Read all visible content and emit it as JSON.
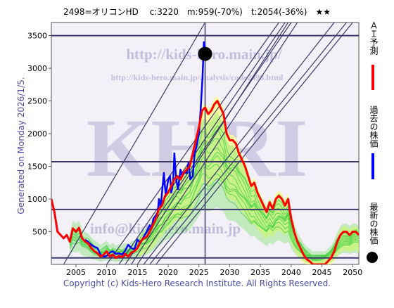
{
  "title": "2498=オリコンHD　 c:3220　m:959(-70%)　t:2054(-36%)　★★",
  "generated": "Generated on Monday 2026/1/5.",
  "copyright": "Copyright (c) Kids-Hero Research Institute. All Rights Reserved.",
  "watermarks": {
    "url_main": "http://kids-hero.main.jp/",
    "url_sub": "http://kids-hero.main.jp/analysis/code2498.html",
    "logo": "KHRI",
    "email": "info@kids-hero.main.jp"
  },
  "legend": {
    "ai_forecast": "ＡＩ予測",
    "past_price": "過去の株価",
    "latest_price": "最新の株価"
  },
  "colors": {
    "forecast": "#ff0000",
    "past": "#0000ff",
    "latest": "#000000",
    "band_green": "#33cc33",
    "band_yellow": "#ffff99",
    "grid": "#3a3a6a"
  },
  "chart_data": {
    "type": "line",
    "title": "2498=オリコンHD",
    "xlim": [
      2001,
      2051
    ],
    "ylim": [
      0,
      3700
    ],
    "x_ticks": [
      2005,
      2010,
      2015,
      2020,
      2025,
      2030,
      2035,
      2040,
      2045,
      2050
    ],
    "y_ticks": [
      500,
      1000,
      1500,
      2000,
      2500,
      3000,
      3500
    ],
    "hlines": [
      3500,
      1570,
      840,
      100
    ],
    "vline": 2026,
    "current": {
      "label": "c",
      "value": 3220,
      "x": 2026
    },
    "annotations": {
      "m": "959(-70%)",
      "t": "2054(-36%)"
    },
    "series": [
      {
        "name": "過去の株価",
        "color": "#0000ff",
        "x": [
          2006.5,
          2007,
          2007.5,
          2008,
          2008.5,
          2009,
          2009.5,
          2010,
          2010.5,
          2011,
          2011.5,
          2012,
          2012.5,
          2013,
          2013.5,
          2014,
          2014.5,
          2015,
          2015.5,
          2016,
          2016.5,
          2017,
          2017.3,
          2017.6,
          2018,
          2018.3,
          2018.5,
          2018.8,
          2019,
          2019.3,
          2019.6,
          2020,
          2020.3,
          2020.5,
          2020.8,
          2021,
          2021.3,
          2021.6,
          2022,
          2022.3,
          2022.6,
          2023,
          2023.3,
          2023.6,
          2024,
          2024.3,
          2024.6,
          2025,
          2025.3,
          2025.6,
          2025.8,
          2026
        ],
        "y": [
          380,
          340,
          300,
          270,
          250,
          150,
          120,
          130,
          180,
          200,
          160,
          170,
          150,
          210,
          300,
          250,
          230,
          380,
          330,
          420,
          500,
          600,
          560,
          700,
          750,
          800,
          1000,
          900,
          1100,
          1400,
          1050,
          1300,
          1350,
          1100,
          1250,
          1700,
          1300,
          1150,
          1450,
          1350,
          1400,
          1400,
          1550,
          1300,
          1350,
          1700,
          1800,
          2000,
          2400,
          2900,
          3400,
          3300
        ]
      },
      {
        "name": "ＡＩ予測",
        "color": "#ff0000",
        "x": [
          2001,
          2001.5,
          2002,
          2002.5,
          2003,
          2003.5,
          2004,
          2004.5,
          2005,
          2005.5,
          2006,
          2006.5,
          2007,
          2007.5,
          2008,
          2008.5,
          2009,
          2009.5,
          2010,
          2010.5,
          2011,
          2011.5,
          2012,
          2012.5,
          2013,
          2013.5,
          2014,
          2014.5,
          2015,
          2015.5,
          2016,
          2016.5,
          2017,
          2017.5,
          2018,
          2018.5,
          2019,
          2019.5,
          2020,
          2020.5,
          2021,
          2021.5,
          2022,
          2022.5,
          2023,
          2023.5,
          2024,
          2024.5,
          2025,
          2025.5,
          2026,
          2026.5,
          2027,
          2027.5,
          2028,
          2028.5,
          2029,
          2029.5,
          2030,
          2030.5,
          2031,
          2031.5,
          2032,
          2032.5,
          2033,
          2033.5,
          2034,
          2034.5,
          2035,
          2035.5,
          2036,
          2036.5,
          2037,
          2037.5,
          2038,
          2038.5,
          2039,
          2039.5,
          2040,
          2040.5,
          2041,
          2041.5,
          2042,
          2042.5,
          2043,
          2043.5,
          2044,
          2044.5,
          2045,
          2045.5,
          2046,
          2046.5,
          2047,
          2047.5,
          2048,
          2048.5,
          2049,
          2049.5,
          2050,
          2050.5,
          2051
        ],
        "y": [
          1000,
          800,
          500,
          450,
          400,
          450,
          350,
          550,
          500,
          560,
          400,
          350,
          320,
          250,
          200,
          170,
          120,
          150,
          200,
          120,
          150,
          100,
          130,
          110,
          160,
          120,
          180,
          200,
          250,
          350,
          400,
          420,
          500,
          600,
          700,
          850,
          900,
          1050,
          1100,
          1200,
          1300,
          1350,
          1300,
          1400,
          1450,
          1500,
          1700,
          1900,
          2100,
          2350,
          2400,
          2300,
          2350,
          2450,
          2500,
          2400,
          2300,
          2000,
          1900,
          1900,
          1850,
          1700,
          1600,
          1500,
          1350,
          1200,
          1250,
          1100,
          1000,
          900,
          800,
          950,
          850,
          1000,
          1050,
          1000,
          900,
          1000,
          700,
          500,
          350,
          250,
          150,
          80,
          50,
          0,
          0,
          0,
          0,
          0,
          50,
          100,
          200,
          350,
          450,
          500,
          500,
          450,
          500,
          500,
          450
        ]
      }
    ]
  }
}
